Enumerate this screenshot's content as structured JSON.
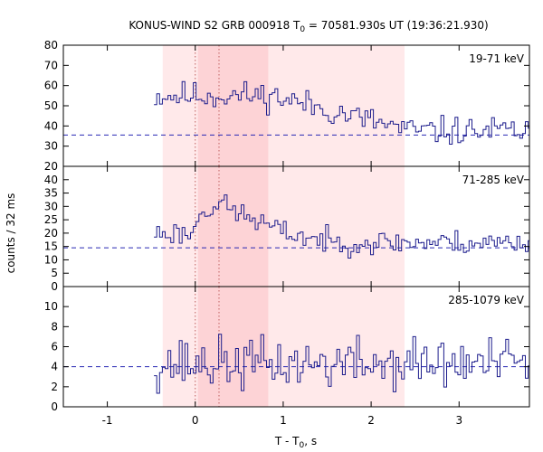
{
  "title": {
    "prefix": "KONUS-WIND S2 GRB 000918 T",
    "sub": "0",
    "suffix": " = 70581.930s UT (19:36:21.930)"
  },
  "xlabel": {
    "prefix": "T - T",
    "sub": "0",
    "suffix": ", s"
  },
  "ylabel": "counts / 32 ms",
  "colors": {
    "signal": "#1c1c8c",
    "background_line": "#2828b4",
    "shade_outer": "#ffe9ea",
    "shade_inner": "#fdd3d6",
    "marker_line": "#c06060",
    "axis": "#000000"
  },
  "chart_data": {
    "type": "line",
    "x_unit": "s",
    "xlim": [
      -1.5,
      3.8
    ],
    "x_ticks": [
      -1,
      0,
      1,
      2,
      3
    ],
    "shaded_intervals": [
      {
        "start": -0.37,
        "end": 2.38,
        "shade": "outer"
      },
      {
        "start": 0.03,
        "end": 0.83,
        "shade": "inner"
      }
    ],
    "vertical_markers": [
      0.0,
      0.27
    ],
    "panels": [
      {
        "label": "19-71 keV",
        "ylim": [
          20,
          80
        ],
        "y_ticks": [
          20,
          30,
          40,
          50,
          60,
          70,
          80
        ],
        "background": 35.5,
        "data_start": -0.47,
        "bin_width": 0.032,
        "seed": 11,
        "profile": "low"
      },
      {
        "label": "71-285 keV",
        "ylim": [
          0,
          45
        ],
        "y_ticks": [
          0,
          5,
          10,
          15,
          20,
          25,
          30,
          35,
          40
        ],
        "background": 14.5,
        "data_start": -0.47,
        "bin_width": 0.032,
        "seed": 23,
        "profile": "mid"
      },
      {
        "label": "285-1079 keV",
        "ylim": [
          0,
          12
        ],
        "y_ticks": [
          0,
          2,
          4,
          6,
          8,
          10
        ],
        "background": 4.0,
        "data_start": -0.47,
        "bin_width": 0.032,
        "seed": 37,
        "profile": "high"
      }
    ]
  }
}
